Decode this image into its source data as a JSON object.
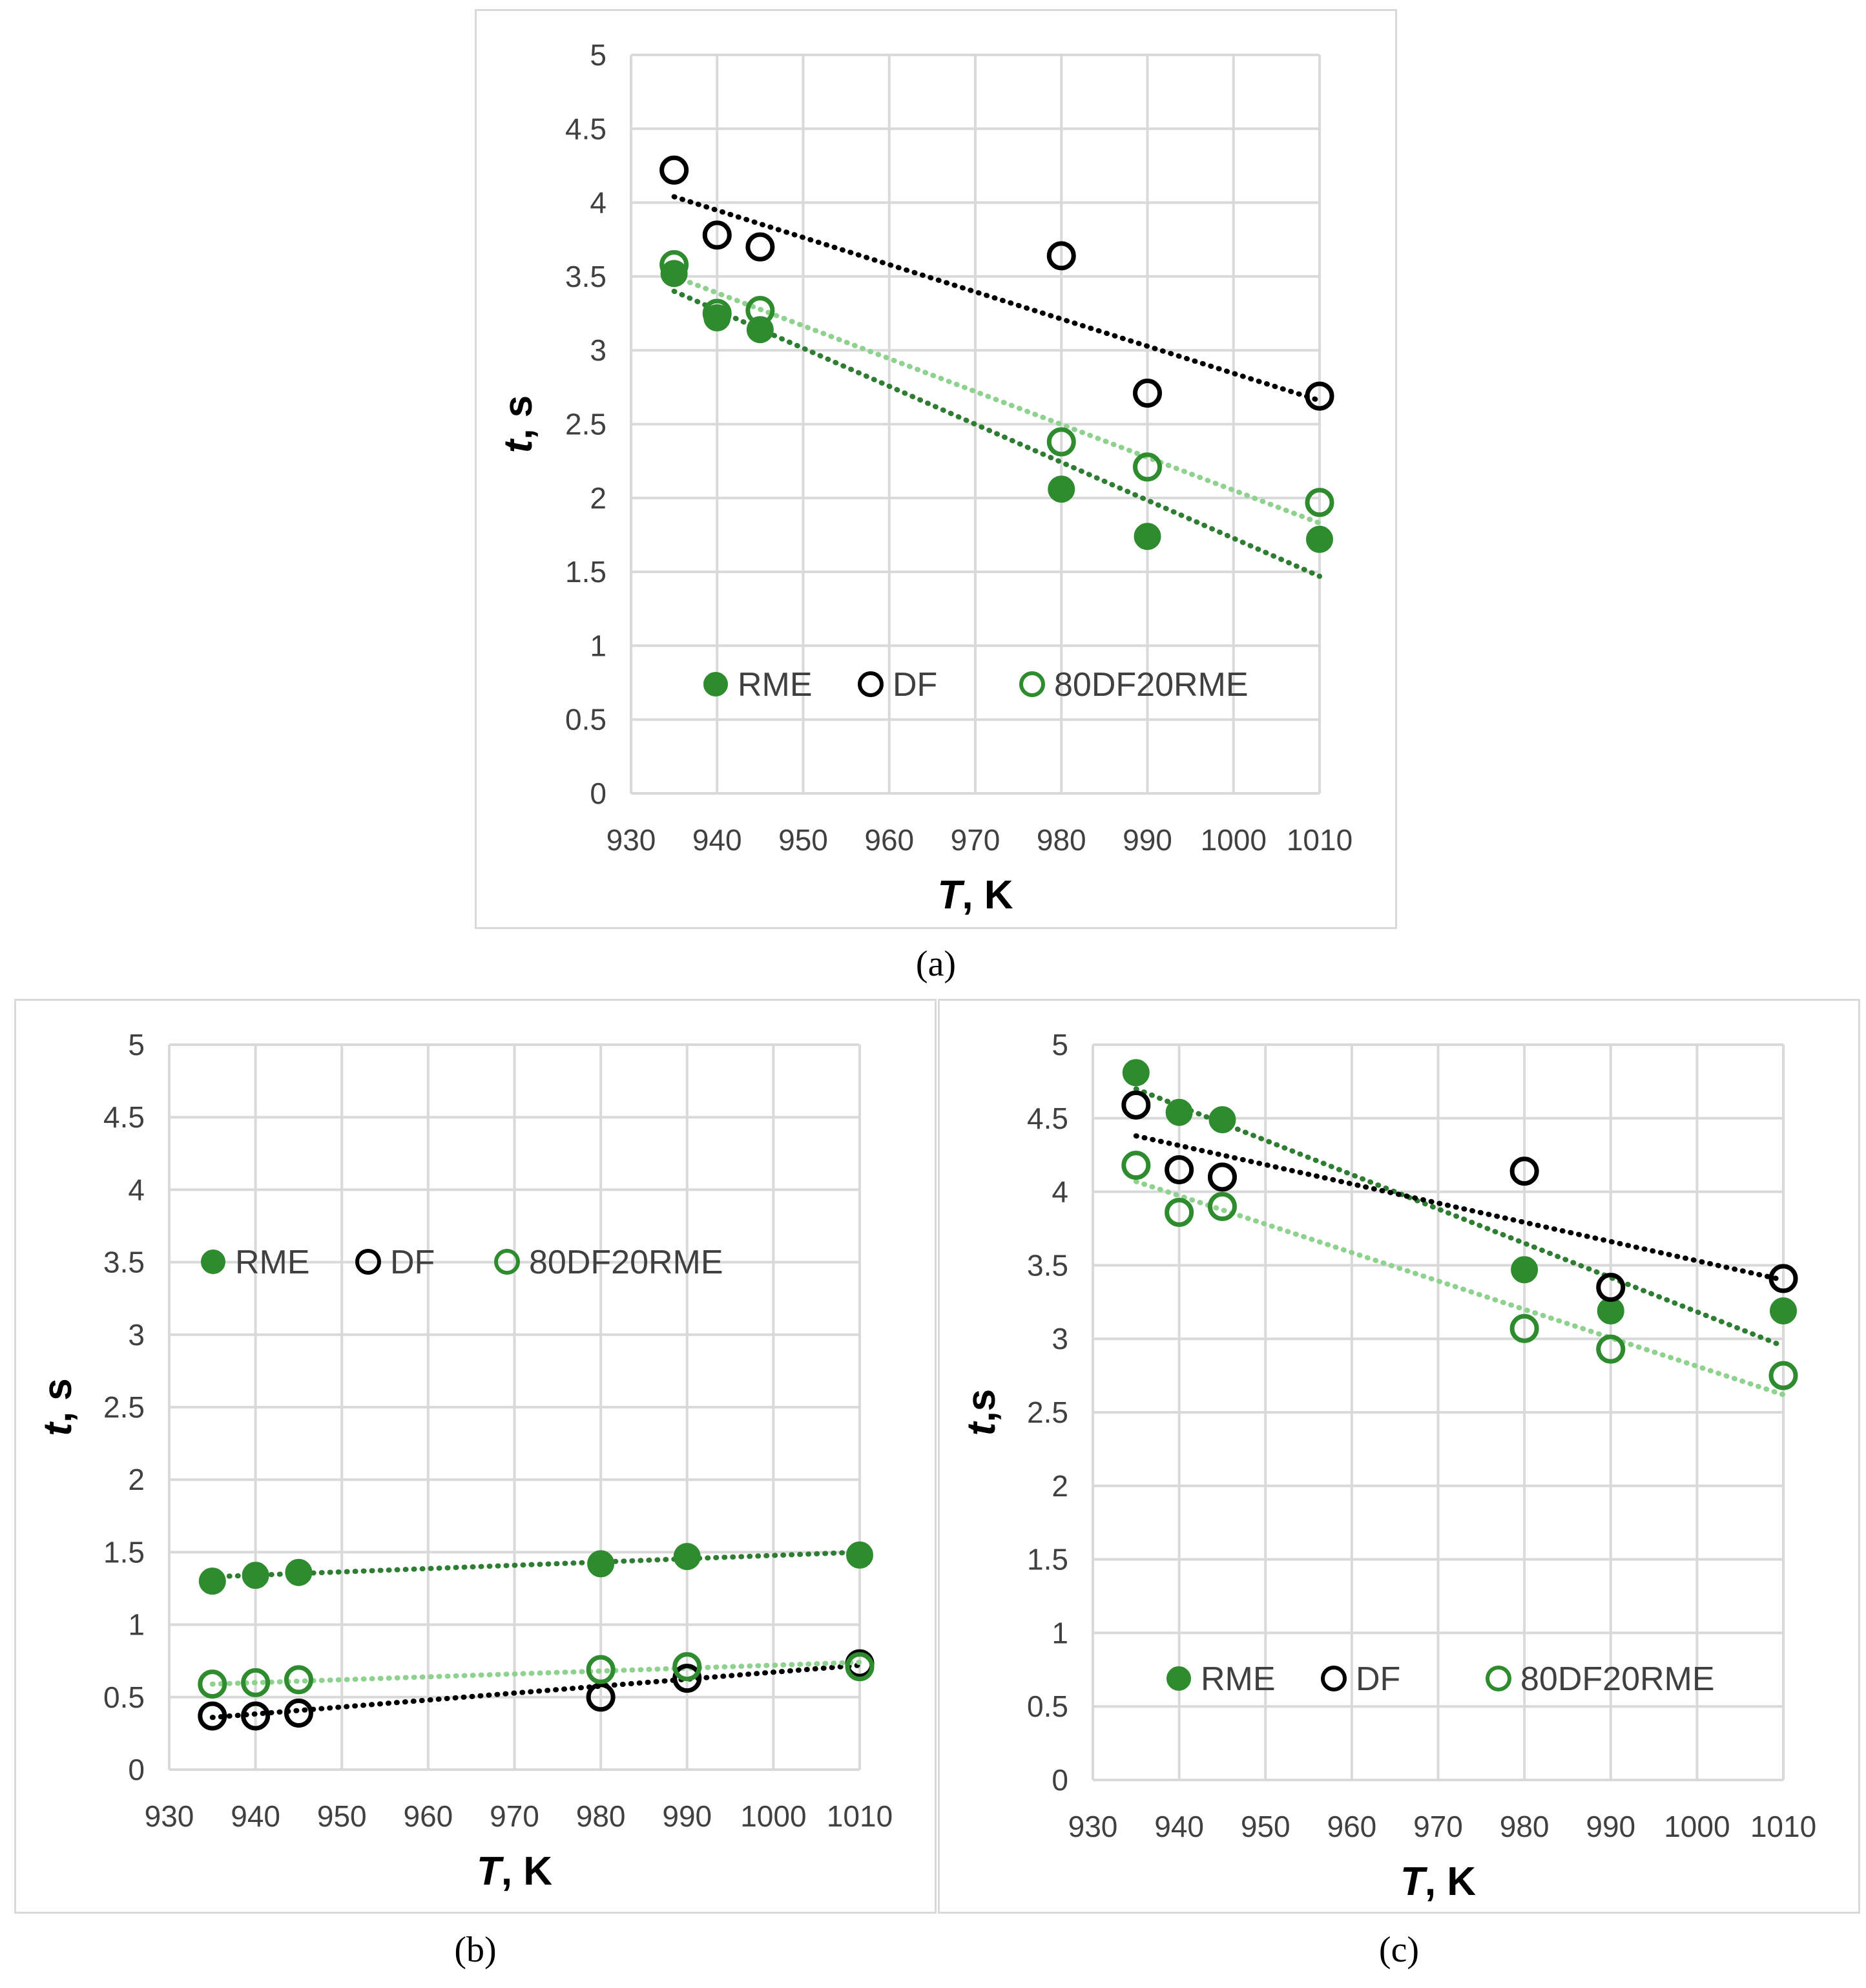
{
  "chart_data": [
    {
      "id": "a",
      "type": "scatter",
      "caption": "(a)",
      "xlabel_italic": "T",
      "xlabel_rest": ", K",
      "ylabel_italic": "t",
      "ylabel_rest": ", s",
      "xlim": [
        930,
        1010
      ],
      "ylim": [
        0,
        5
      ],
      "xticks": [
        "930",
        "940",
        "950",
        "960",
        "970",
        "980",
        "990",
        "1000",
        "1010"
      ],
      "yticks": [
        "0",
        "0.5",
        "1",
        "1.5",
        "2",
        "2.5",
        "3",
        "3.5",
        "4",
        "4.5",
        "5"
      ],
      "legend_position": "lower-center",
      "series": [
        {
          "name": "RME",
          "marker": "filled",
          "color": "#2e8b2e",
          "trend_color": "#2e7d32",
          "x": [
            935,
            940,
            945,
            980,
            990,
            1010
          ],
          "y": [
            3.52,
            3.22,
            3.14,
            2.06,
            1.74,
            1.72
          ],
          "trend": [
            3.4,
            1.47
          ]
        },
        {
          "name": "DF",
          "marker": "open",
          "color": "#000000",
          "trend_color": "#000000",
          "x": [
            935,
            940,
            945,
            980,
            990,
            1010
          ],
          "y": [
            4.22,
            3.78,
            3.7,
            3.64,
            2.71,
            2.69
          ],
          "trend": [
            4.04,
            2.66
          ]
        },
        {
          "name": "80DF20RME",
          "marker": "open",
          "color": "#2e8b2e",
          "trend_color": "#8fd18f",
          "x": [
            935,
            940,
            945,
            980,
            990,
            1010
          ],
          "y": [
            3.58,
            3.25,
            3.27,
            2.38,
            2.21,
            1.97
          ],
          "trend": [
            3.5,
            1.83
          ]
        }
      ]
    },
    {
      "id": "b",
      "type": "scatter",
      "caption": "(b)",
      "xlabel_italic": "T",
      "xlabel_rest": ", K",
      "ylabel_italic": "t",
      "ylabel_rest": ", s",
      "xlim": [
        930,
        1010
      ],
      "ylim": [
        0,
        5
      ],
      "xticks": [
        "930",
        "940",
        "950",
        "960",
        "970",
        "980",
        "990",
        "1000",
        "1010"
      ],
      "yticks": [
        "0",
        "0.5",
        "1",
        "1.5",
        "2",
        "2.5",
        "3",
        "3.5",
        "4",
        "4.5",
        "5"
      ],
      "legend_position": "middle-left",
      "series": [
        {
          "name": "RME",
          "marker": "filled",
          "color": "#2e8b2e",
          "trend_color": "#2e7d32",
          "x": [
            935,
            940,
            945,
            980,
            990,
            1010
          ],
          "y": [
            1.3,
            1.34,
            1.36,
            1.42,
            1.47,
            1.48
          ],
          "trend": [
            1.33,
            1.5
          ]
        },
        {
          "name": "DF",
          "marker": "open",
          "color": "#000000",
          "trend_color": "#000000",
          "x": [
            935,
            940,
            945,
            980,
            990,
            1010
          ],
          "y": [
            0.37,
            0.37,
            0.39,
            0.5,
            0.63,
            0.73
          ],
          "trend": [
            0.36,
            0.72
          ]
        },
        {
          "name": "80DF20RME",
          "marker": "open",
          "color": "#2e8b2e",
          "trend_color": "#8fd18f",
          "x": [
            935,
            940,
            945,
            980,
            990,
            1010
          ],
          "y": [
            0.59,
            0.6,
            0.62,
            0.69,
            0.71,
            0.71
          ],
          "trend": [
            0.59,
            0.74
          ]
        }
      ]
    },
    {
      "id": "c",
      "type": "scatter",
      "caption": "(c)",
      "xlabel_italic": "T",
      "xlabel_rest": ", K",
      "ylabel_italic": "t",
      "ylabel_rest": ",s",
      "xlim": [
        930,
        1010
      ],
      "ylim": [
        0,
        5
      ],
      "xticks": [
        "930",
        "940",
        "950",
        "960",
        "970",
        "980",
        "990",
        "1000",
        "1010"
      ],
      "yticks": [
        "0",
        "0.5",
        "1",
        "1.5",
        "2",
        "2.5",
        "3",
        "3.5",
        "4",
        "4.5",
        "5"
      ],
      "legend_position": "lower-center",
      "series": [
        {
          "name": "RME",
          "marker": "filled",
          "color": "#2e8b2e",
          "trend_color": "#2e7d32",
          "x": [
            935,
            940,
            945,
            980,
            990,
            1010
          ],
          "y": [
            4.81,
            4.54,
            4.49,
            3.47,
            3.19,
            3.19
          ],
          "trend": [
            4.7,
            2.95
          ]
        },
        {
          "name": "DF",
          "marker": "open",
          "color": "#000000",
          "trend_color": "#000000",
          "x": [
            935,
            940,
            945,
            980,
            990,
            1010
          ],
          "y": [
            4.59,
            4.15,
            4.1,
            4.14,
            3.35,
            3.41
          ],
          "trend": [
            4.38,
            3.4
          ]
        },
        {
          "name": "80DF20RME",
          "marker": "open",
          "color": "#2e8b2e",
          "trend_color": "#8fd18f",
          "x": [
            935,
            940,
            945,
            980,
            990,
            1010
          ],
          "y": [
            4.18,
            3.86,
            3.9,
            3.07,
            2.93,
            2.75
          ],
          "trend": [
            4.07,
            2.62
          ]
        }
      ]
    }
  ]
}
